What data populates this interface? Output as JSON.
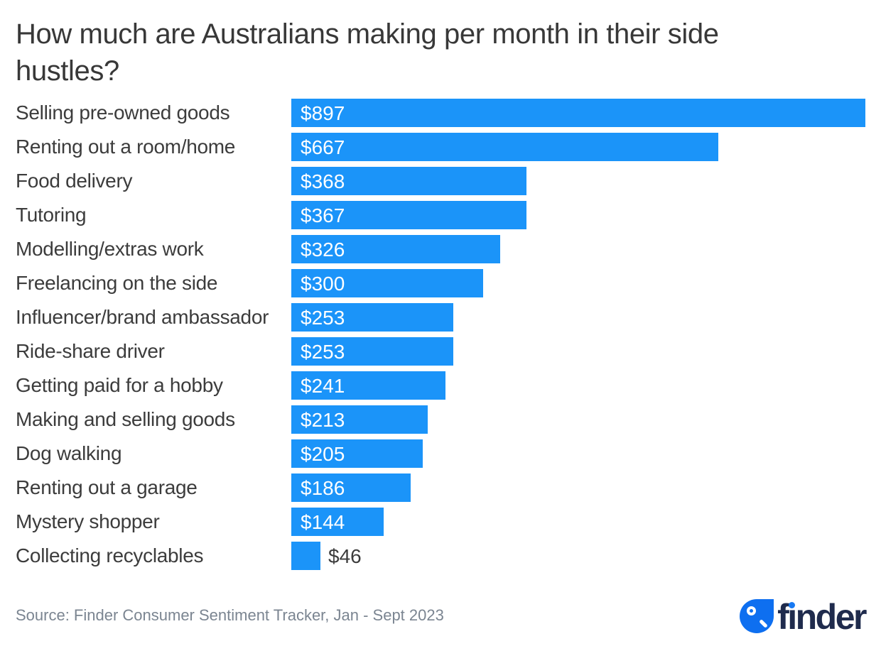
{
  "header": {
    "title": "How much are Australians making per month in their side hustles?",
    "title_lines": [
      "How much are Australians making per month in their side",
      "hustles?"
    ]
  },
  "chart_data": {
    "type": "bar",
    "orientation": "horizontal",
    "title": "How much are Australians making per month in their side hustles?",
    "categories": [
      "Selling pre-owned goods",
      "Renting out a room/home",
      "Food delivery",
      "Tutoring",
      "Modelling/extras work",
      "Freelancing on the side",
      "Influencer/brand ambassador",
      "Ride-share driver",
      "Getting paid for a hobby",
      "Making and selling goods",
      "Dog walking",
      "Renting out a garage",
      "Mystery shopper",
      "Collecting recyclables"
    ],
    "values": [
      897,
      667,
      368,
      367,
      326,
      300,
      253,
      253,
      241,
      213,
      205,
      186,
      144,
      46
    ],
    "value_prefix": "$",
    "value_labels": [
      "$897",
      "$667",
      "$368",
      "$367",
      "$326",
      "$300",
      "$253",
      "$253",
      "$241",
      "$213",
      "$205",
      "$186",
      "$144",
      "$46"
    ],
    "xlim": [
      0,
      897
    ],
    "grid": false,
    "legend": false,
    "bar_color": "#1b94f9",
    "value_label_color_inside": "#ffffff",
    "value_label_color_outside": "#3c3c3c"
  },
  "footer": {
    "source": "Source: Finder Consumer Sentiment Tracker, Jan - Sept 2023"
  },
  "logo": {
    "brand": "finder",
    "wordmark": "finder",
    "wordmark_render": {
      "f": "f",
      "i_dotless": "ı",
      "rest": "nder"
    },
    "icon": "magnifier-drop-icon",
    "colors": {
      "drop_blue": "#0e6ff0",
      "i_dot_blue": "#1779f2",
      "wordmark_navy": "#1f2b4d"
    }
  },
  "colors": {
    "background": "#ffffff",
    "bar_blue": "#1b94f9",
    "title_text": "#383838",
    "label_text": "#3c3c3c",
    "source_text": "#7b8591"
  }
}
